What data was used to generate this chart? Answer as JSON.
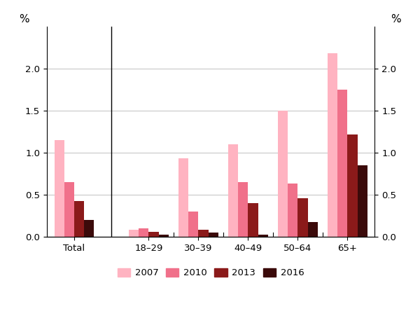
{
  "categories": [
    "Total",
    "18–29",
    "30–39",
    "40–49",
    "50–64",
    "65+"
  ],
  "series": {
    "2007": [
      1.15,
      0.08,
      0.93,
      1.1,
      1.5,
      2.18
    ],
    "2010": [
      0.65,
      0.1,
      0.3,
      0.65,
      0.63,
      1.75
    ],
    "2013": [
      0.42,
      0.06,
      0.08,
      0.4,
      0.46,
      1.22
    ],
    "2016": [
      0.2,
      0.02,
      0.05,
      0.02,
      0.17,
      0.85
    ]
  },
  "colors": {
    "2007": "#FFB3C1",
    "2010": "#F0708A",
    "2013": "#8B1A1A",
    "2016": "#3B0A0A"
  },
  "ylim": [
    0,
    2.5
  ],
  "yticks": [
    0.0,
    0.5,
    1.0,
    1.5,
    2.0
  ],
  "ylabel": "%",
  "bar_width": 0.2,
  "legend_order": [
    "2007",
    "2010",
    "2013",
    "2016"
  ],
  "background_color": "#ffffff",
  "grid_color": "#c8c8c8"
}
